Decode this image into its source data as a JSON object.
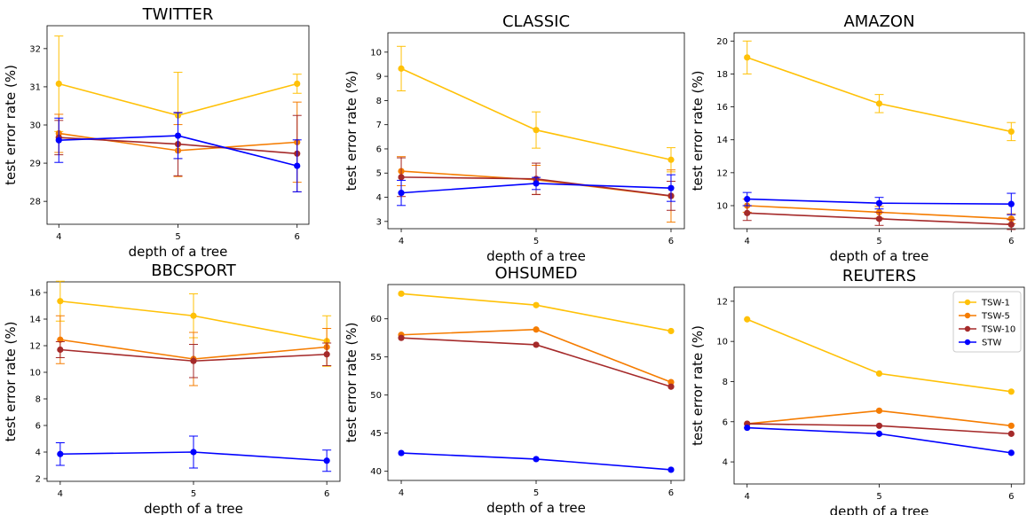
{
  "figure": {
    "colors": {
      "TSW-1": "#ffc107",
      "TSW-5": "#f57c00",
      "TSW-10": "#a52a2a",
      "STW": "#0000ff"
    }
  },
  "chart_data": [
    {
      "type": "line",
      "title": "TWITTER",
      "xlabel": "depth of a tree",
      "ylabel": "test error rate (%)",
      "x": [
        4,
        5,
        6
      ],
      "ylim": [
        27.4,
        32.6
      ],
      "yticks": [
        28,
        29,
        30,
        31,
        32
      ],
      "series": [
        {
          "name": "TSW-1",
          "values": [
            31.08,
            30.25,
            31.08
          ],
          "err": [
            1.25,
            1.13,
            0.25
          ]
        },
        {
          "name": "TSW-5",
          "values": [
            29.78,
            29.33,
            29.55
          ],
          "err": [
            0.5,
            0.68,
            1.05
          ]
        },
        {
          "name": "TSW-10",
          "values": [
            29.67,
            29.5,
            29.25
          ],
          "err": [
            0.45,
            0.83,
            1.0
          ]
        },
        {
          "name": "STW",
          "values": [
            29.6,
            29.72,
            28.93
          ],
          "err": [
            0.58,
            0.6,
            0.68
          ]
        }
      ]
    },
    {
      "type": "line",
      "title": "CLASSIC",
      "xlabel": "depth of a tree",
      "ylabel": "test error rate (%)",
      "x": [
        4,
        5,
        6
      ],
      "ylim": [
        2.7,
        10.8
      ],
      "yticks": [
        3,
        4,
        5,
        6,
        7,
        8,
        9,
        10
      ],
      "series": [
        {
          "name": "TSW-1",
          "values": [
            9.32,
            6.78,
            5.55
          ],
          "err": [
            0.92,
            0.75,
            0.5
          ]
        },
        {
          "name": "TSW-5",
          "values": [
            5.08,
            4.72,
            4.05
          ],
          "err": [
            0.6,
            0.6,
            1.08
          ]
        },
        {
          "name": "TSW-10",
          "values": [
            4.83,
            4.76,
            4.06
          ],
          "err": [
            0.8,
            0.65,
            0.6
          ]
        },
        {
          "name": "STW",
          "values": [
            4.18,
            4.57,
            4.38
          ],
          "err": [
            0.52,
            0.25,
            0.55
          ]
        }
      ]
    },
    {
      "type": "line",
      "title": "AMAZON",
      "xlabel": "depth of a tree",
      "ylabel": "test error rate (%)",
      "x": [
        4,
        5,
        6
      ],
      "ylim": [
        8.6,
        20.5
      ],
      "yticks": [
        10,
        12,
        14,
        16,
        18,
        20
      ],
      "series": [
        {
          "name": "TSW-1",
          "values": [
            19.0,
            16.2,
            14.5
          ],
          "err": [
            1.0,
            0.55,
            0.55
          ]
        },
        {
          "name": "TSW-5",
          "values": [
            10.0,
            9.6,
            9.2
          ],
          "err": [
            0.4,
            0.35,
            0.3
          ]
        },
        {
          "name": "TSW-10",
          "values": [
            9.55,
            9.2,
            8.85
          ],
          "err": [
            0.45,
            0.4,
            0.3
          ]
        },
        {
          "name": "STW",
          "values": [
            10.4,
            10.15,
            10.1
          ],
          "err": [
            0.4,
            0.35,
            0.65
          ]
        }
      ]
    },
    {
      "type": "line",
      "title": "BBCSPORT",
      "xlabel": "depth of a tree",
      "ylabel": "test error rate (%)",
      "x": [
        4,
        5,
        6
      ],
      "ylim": [
        1.8,
        16.8
      ],
      "yticks": [
        2,
        4,
        6,
        8,
        10,
        12,
        14,
        16
      ],
      "series": [
        {
          "name": "TSW-1",
          "values": [
            15.35,
            14.25,
            12.35
          ],
          "err": [
            1.5,
            1.65,
            1.9
          ]
        },
        {
          "name": "TSW-5",
          "values": [
            12.45,
            11.0,
            11.9
          ],
          "err": [
            1.8,
            2.0,
            1.4
          ]
        },
        {
          "name": "TSW-10",
          "values": [
            11.7,
            10.85,
            11.35
          ],
          "err": [
            0.6,
            1.25,
            0.85
          ]
        },
        {
          "name": "STW",
          "values": [
            3.85,
            4.0,
            3.35
          ],
          "err": [
            0.85,
            1.2,
            0.8
          ]
        }
      ]
    },
    {
      "type": "line",
      "title": "OHSUMED",
      "xlabel": "depth of a tree",
      "ylabel": "test error rate (%)",
      "x": [
        4,
        5,
        6
      ],
      "ylim": [
        38.8,
        64.5
      ],
      "yticks": [
        40,
        45,
        50,
        55,
        60
      ],
      "series": [
        {
          "name": "TSW-1",
          "values": [
            63.3,
            61.8,
            58.4
          ],
          "err": [
            0,
            0,
            0
          ]
        },
        {
          "name": "TSW-5",
          "values": [
            57.9,
            58.6,
            51.7
          ],
          "err": [
            0,
            0,
            0
          ]
        },
        {
          "name": "TSW-10",
          "values": [
            57.5,
            56.6,
            51.1
          ],
          "err": [
            0,
            0,
            0
          ]
        },
        {
          "name": "STW",
          "values": [
            42.4,
            41.6,
            40.2
          ],
          "err": [
            0,
            0,
            0
          ]
        }
      ]
    },
    {
      "type": "line",
      "title": "REUTERS",
      "xlabel": "depth of a tree",
      "ylabel": "test error rate (%)",
      "x": [
        4,
        5,
        6
      ],
      "ylim": [
        2.9,
        12.7
      ],
      "yticks": [
        4,
        6,
        8,
        10,
        12
      ],
      "legend": "top-right",
      "series": [
        {
          "name": "TSW-1",
          "values": [
            11.1,
            8.4,
            7.5
          ],
          "err": [
            0,
            0,
            0
          ]
        },
        {
          "name": "TSW-5",
          "values": [
            5.9,
            6.55,
            5.8
          ],
          "err": [
            0,
            0,
            0
          ]
        },
        {
          "name": "TSW-10",
          "values": [
            5.9,
            5.8,
            5.4
          ],
          "err": [
            0,
            0,
            0
          ]
        },
        {
          "name": "STW",
          "values": [
            5.7,
            5.4,
            4.45
          ],
          "err": [
            0,
            0,
            0
          ]
        }
      ]
    }
  ]
}
